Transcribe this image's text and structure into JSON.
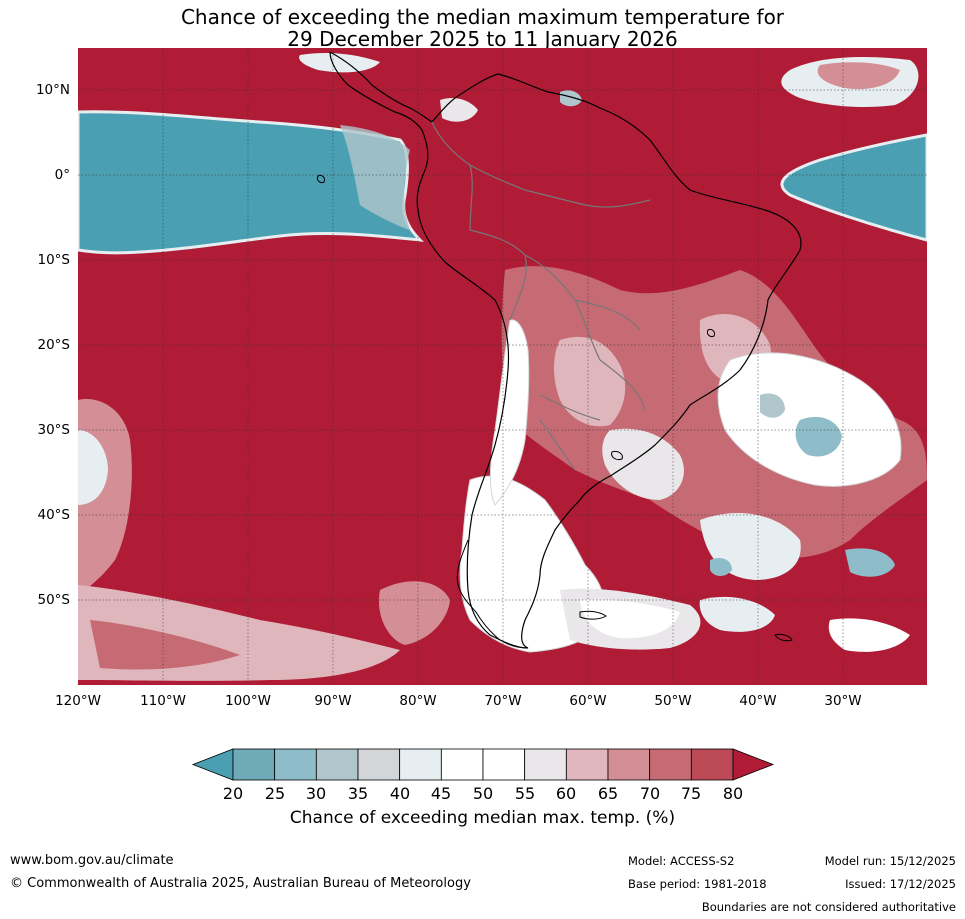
{
  "title": {
    "line1": "Chance of exceeding the median maximum temperature for",
    "line2": "29 December 2025 to 11 January 2026"
  },
  "map": {
    "lat_labels": [
      "10°N",
      "0°",
      "10°S",
      "20°S",
      "30°S",
      "40°S",
      "50°S"
    ],
    "lon_labels": [
      "120°W",
      "110°W",
      "100°W",
      "90°W",
      "80°W",
      "70°W",
      "60°W",
      "50°W",
      "40°W",
      "30°W"
    ],
    "lon_extent": [
      -120,
      -20
    ],
    "lat_extent": [
      -60,
      15
    ]
  },
  "colorbar": {
    "ticks": [
      "20",
      "25",
      "30",
      "35",
      "40",
      "45",
      "50",
      "55",
      "60",
      "65",
      "70",
      "75",
      "80"
    ],
    "colors": [
      "#4aa0b2",
      "#6eaab7",
      "#8ebdc9",
      "#afc6cc",
      "#d3d6d9",
      "#e6eef1",
      "#ffffff",
      "#ffffff",
      "#e9e7e9",
      "#dfb6bc",
      "#d48e96",
      "#c66a74",
      "#bd4a57",
      "#b01c36"
    ],
    "label": "Chance of exceeding median max. temp. (%)"
  },
  "footer": {
    "website": "www.bom.gov.au/climate",
    "copyright": "© Commonwealth of Australia 2025, Australian Bureau of Meteorology",
    "model": "Model: ACCESS-S2",
    "base_period": "Base period: 1981-2018",
    "model_run": "Model run: 15/12/2025",
    "issued": "Issued: 17/12/2025",
    "disclaimer": "Boundaries are not considered authoritative"
  }
}
